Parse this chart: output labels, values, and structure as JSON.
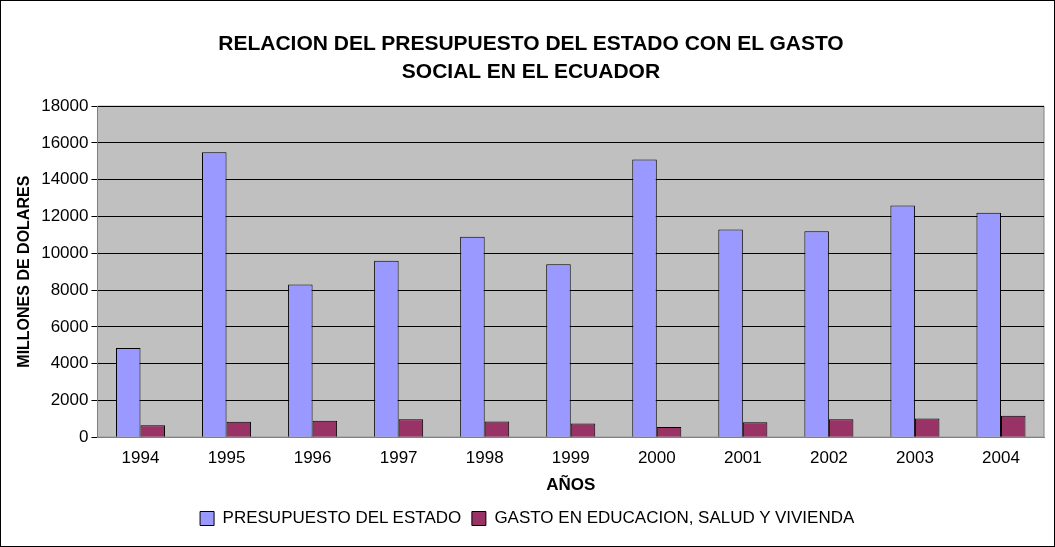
{
  "chart_data": {
    "type": "bar",
    "title": "RELACION DEL PRESUPUESTO DEL ESTADO CON EL GASTO SOCIAL EN EL ECUADOR",
    "xlabel": "AÑOS",
    "ylabel": "MILLONES DE DOLARES",
    "categories": [
      "1994",
      "1995",
      "1996",
      "1997",
      "1998",
      "1999",
      "2000",
      "2001",
      "2002",
      "2003",
      "2004"
    ],
    "series": [
      {
        "name": "PRESUPUESTO DEL ESTADO",
        "color": "#9999ff",
        "values": [
          4850,
          15500,
          8300,
          9600,
          10900,
          9400,
          15100,
          11300,
          11200,
          12600,
          12200
        ]
      },
      {
        "name": "GASTO EN EDUCACION, SALUD Y VIVIENDA",
        "color": "#993366",
        "values": [
          650,
          840,
          900,
          980,
          860,
          740,
          560,
          810,
          980,
          1020,
          1160
        ]
      }
    ],
    "ylim": [
      0,
      18000
    ],
    "yticks": [
      0,
      2000,
      4000,
      6000,
      8000,
      10000,
      12000,
      14000,
      16000,
      18000
    ],
    "grid": "y",
    "legend": "bottom"
  }
}
